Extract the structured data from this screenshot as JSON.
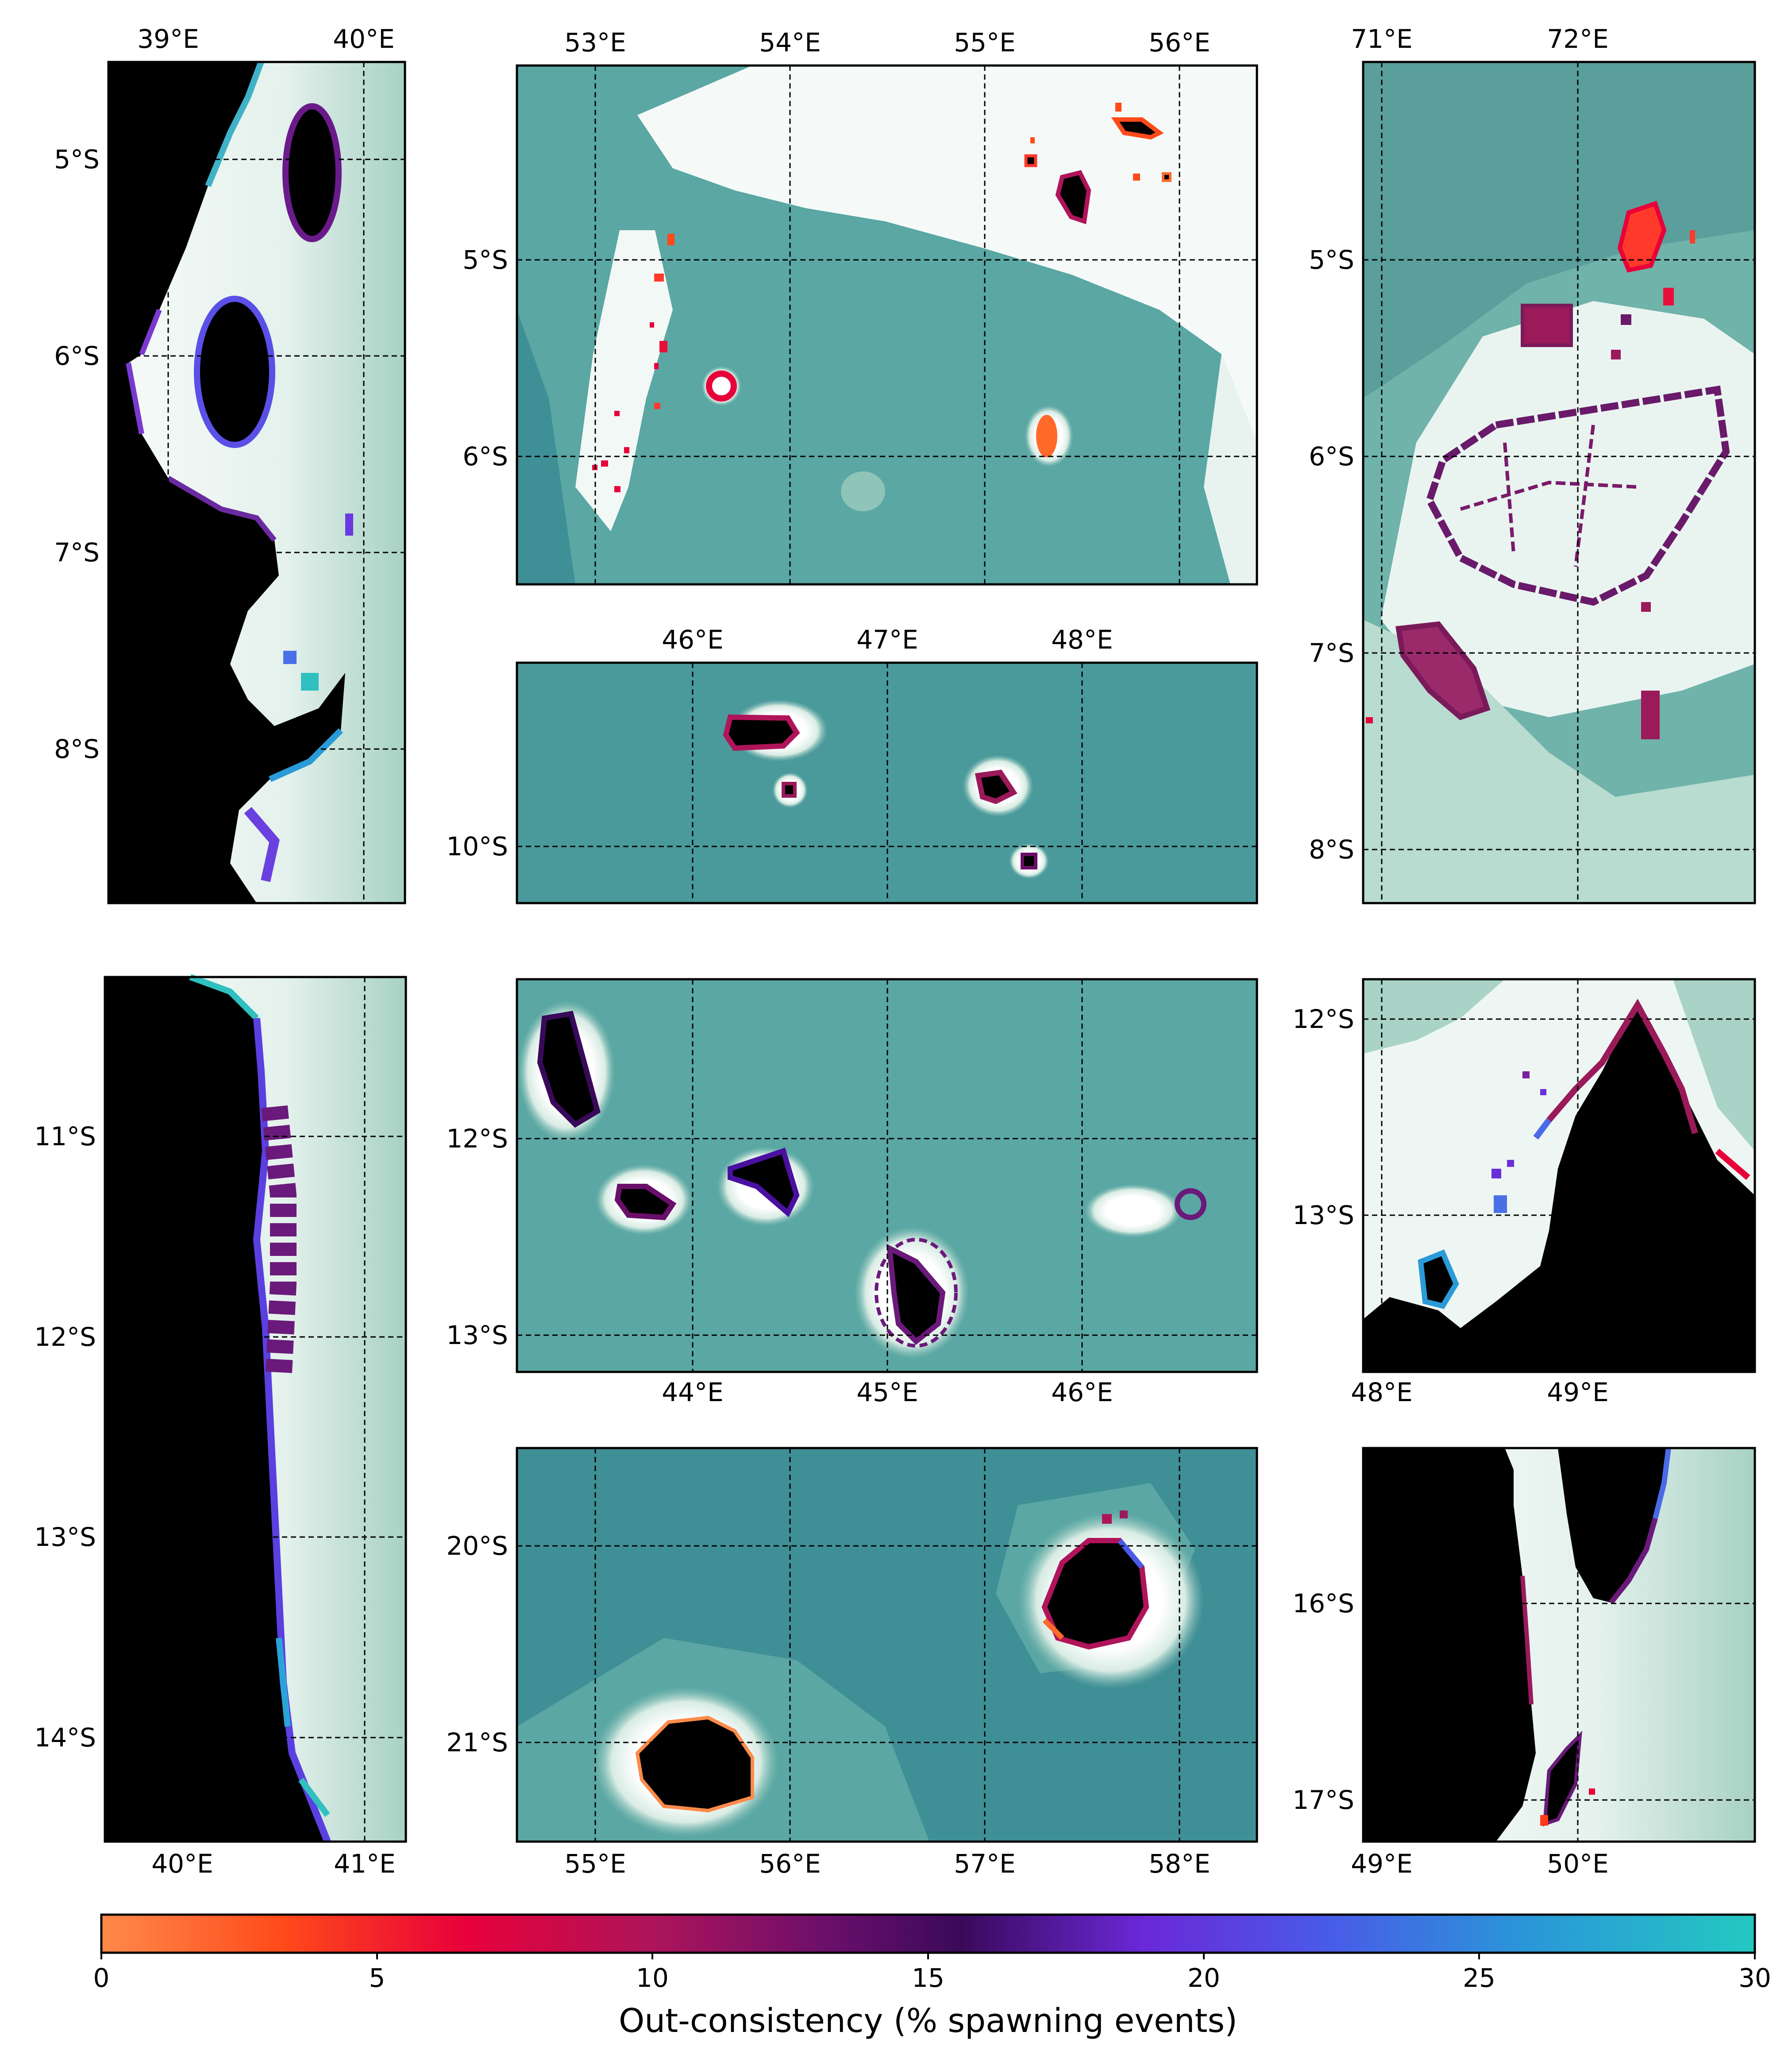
{
  "figure": {
    "colorbar": {
      "label": "Out-consistency (% spawning events)",
      "ticks": [
        "0",
        "5",
        "10",
        "15",
        "20",
        "25",
        "30"
      ],
      "range": [
        0,
        30
      ],
      "colormap": [
        "#ff8a4a",
        "#ff4a1a",
        "#e8003a",
        "#b0145a",
        "#6a0f6a",
        "#3a0a5a",
        "#6a28d8",
        "#4a5ae8",
        "#2a96d8",
        "#24c8c2"
      ]
    },
    "colors": {
      "land": "#000000",
      "ocean_deep": "#3f8f96",
      "ocean_mid": "#64aca6",
      "ocean_shallow": "#a9d3c6",
      "shelf": "#f6faf8"
    },
    "panels": [
      {
        "id": "tanzania-north",
        "top_labels": [
          "39°E",
          "40°E"
        ],
        "bottom_labels": [],
        "lat_labels": [
          "5°S",
          "6°S",
          "7°S",
          "8°S"
        ]
      },
      {
        "id": "seychelles-amirantes",
        "top_labels": [
          "53°E",
          "54°E",
          "55°E",
          "56°E"
        ],
        "bottom_labels": [],
        "lat_labels": [
          "5°S",
          "6°S"
        ]
      },
      {
        "id": "chagos",
        "top_labels": [
          "71°E",
          "72°E"
        ],
        "bottom_labels": [],
        "lat_labels": [
          "5°S",
          "6°S",
          "7°S",
          "8°S"
        ]
      },
      {
        "id": "aldabra",
        "top_labels": [
          "46°E",
          "47°E",
          "48°E"
        ],
        "bottom_labels": [],
        "lat_labels": [
          "10°S"
        ]
      },
      {
        "id": "mozambique-north",
        "top_labels": [],
        "bottom_labels": [
          "40°E",
          "41°E"
        ],
        "lat_labels": [
          "11°S",
          "12°S",
          "13°S",
          "14°S"
        ]
      },
      {
        "id": "comoros",
        "top_labels": [],
        "bottom_labels": [
          "44°E",
          "45°E",
          "46°E"
        ],
        "lat_labels": [
          "12°S",
          "13°S"
        ]
      },
      {
        "id": "madagascar-north",
        "top_labels": [],
        "bottom_labels": [
          "48°E",
          "49°E"
        ],
        "lat_labels": [
          "12°S",
          "13°S"
        ]
      },
      {
        "id": "mascarenes",
        "top_labels": [],
        "bottom_labels": [
          "55°E",
          "56°E",
          "57°E",
          "58°E"
        ],
        "lat_labels": [
          "20°S",
          "21°S"
        ]
      },
      {
        "id": "madagascar-east",
        "top_labels": [],
        "bottom_labels": [
          "49°E",
          "50°E"
        ],
        "lat_labels": [
          "16°S",
          "17°S"
        ]
      }
    ]
  }
}
